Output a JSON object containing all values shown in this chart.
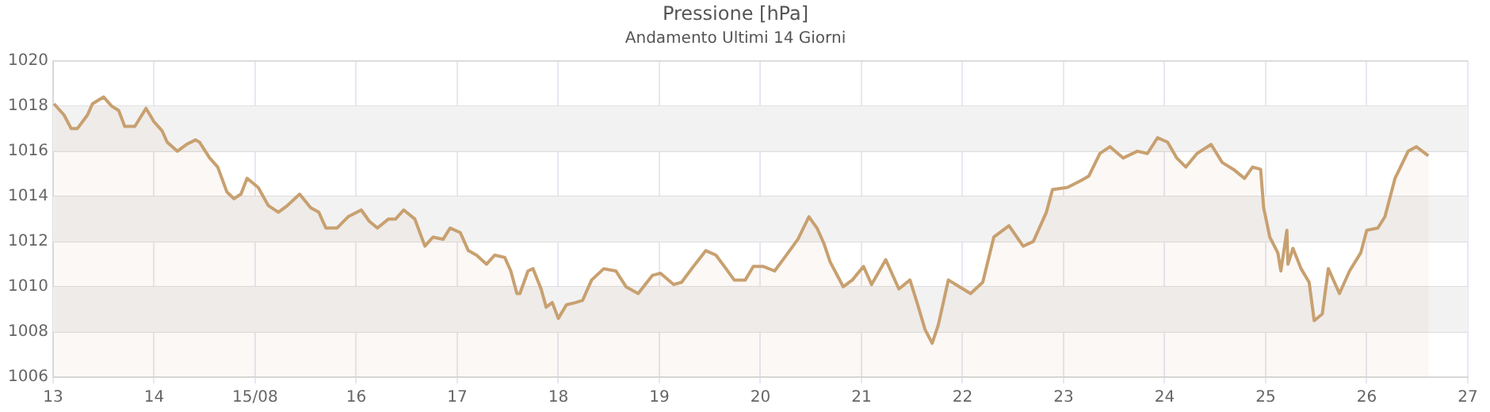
{
  "chart_data": {
    "type": "area",
    "title": "Pressione [hPa]",
    "subtitle": "Andamento Ultimi 14 Giorni",
    "xlim": [
      "--08-13",
      "--08-27"
    ],
    "xticks": [
      {
        "value": "--08-13",
        "label": "13"
      },
      {
        "value": "--08-14",
        "label": "14"
      },
      {
        "value": "--08-15",
        "label": "15/08"
      },
      {
        "value": "--08-16",
        "label": "16"
      },
      {
        "value": "--08-17",
        "label": "17"
      },
      {
        "value": "--08-18",
        "label": "18"
      },
      {
        "value": "--08-19",
        "label": "19"
      },
      {
        "value": "--08-20",
        "label": "20"
      },
      {
        "value": "--08-21",
        "label": "21"
      },
      {
        "value": "--08-22",
        "label": "22"
      },
      {
        "value": "--08-23",
        "label": "23"
      },
      {
        "value": "--08-24",
        "label": "24"
      },
      {
        "value": "--08-25",
        "label": "25"
      },
      {
        "value": "--08-26",
        "label": "26"
      },
      {
        "value": "--08-27",
        "label": "27"
      }
    ],
    "ylim": [
      1006,
      1020
    ],
    "yticks": [
      1006,
      1008,
      1010,
      1012,
      1014,
      1016,
      1018,
      1020
    ],
    "grid": true,
    "legend": false,
    "marker": "none",
    "line_style": "solid",
    "bands": [
      {
        "axis": "y",
        "from": 1008,
        "to": 1010,
        "color": "#f2f2f2"
      },
      {
        "axis": "y",
        "from": 1012,
        "to": 1014,
        "color": "#f2f2f2"
      },
      {
        "axis": "y",
        "from": 1016,
        "to": 1018,
        "color": "#f2f2f2"
      }
    ],
    "series": [
      {
        "color": "#c8a070",
        "x": [
          "--08-13T00:14",
          "--08-13T02:38",
          "--08-13T04:19",
          "--08-13T05:46",
          "--08-13T08:10",
          "--08-13T09:22",
          "--08-13T12:00",
          "--08-13T13:55",
          "--08-13T15:36",
          "--08-13T17:02",
          "--08-13T19:26",
          "--08-13T22:05",
          "--08-14T00:00",
          "--08-14T01:55",
          "--08-14T03:07",
          "--08-14T05:31",
          "--08-14T07:41",
          "--08-14T09:50",
          "--08-14T10:48",
          "--08-14T13:12",
          "--08-14T15:07",
          "--08-14T17:17",
          "--08-14T18:58",
          "--08-14T20:38",
          "--08-14T22:05",
          "--08-15T00:43",
          "--08-15T03:07",
          "--08-15T05:31",
          "--08-15T07:41",
          "--08-15T10:34",
          "--08-15T13:12",
          "--08-15T15:07",
          "--08-15T16:48",
          "--08-15T19:26",
          "--08-15T22:05",
          "--08-16T01:12",
          "--08-16T03:07",
          "--08-16T05:02",
          "--08-16T07:41",
          "--08-16T09:22",
          "--08-16T11:17",
          "--08-16T13:55",
          "--08-16T16:19",
          "--08-16T18:14",
          "--08-16T20:38",
          "--08-16T22:19",
          "--08-17T00:43",
          "--08-17T02:38",
          "--08-17T04:34",
          "--08-17T06:58",
          "--08-17T08:53",
          "--08-17T11:17",
          "--08-17T12:43",
          "--08-17T14:10",
          "--08-17T14:53",
          "--08-17T16:48",
          "--08-17T18:00",
          "--08-17T19:55",
          "--08-17T21:07",
          "--08-17T22:34",
          "--08-18T00:00",
          "--08-18T01:55",
          "--08-18T04:05",
          "--08-18T05:46",
          "--08-18T07:55",
          "--08-18T10:48",
          "--08-18T13:41",
          "--08-18T16:05",
          "--08-18T18:58",
          "--08-18T22:19",
          "--08-19T00:14",
          "--08-19T03:22",
          "--08-19T05:17",
          "--08-19T07:41",
          "--08-19T11:02",
          "--08-19T13:26",
          "--08-19T15:50",
          "--08-19T17:46",
          "--08-19T20:24",
          "--08-19T22:19",
          "--08-20T00:43",
          "--08-20T03:22",
          "--08-20T05:46",
          "--08-20T08:53",
          "--08-20T11:31",
          "--08-20T13:26",
          "--08-20T15:07",
          "--08-20T16:34",
          "--08-20T19:41",
          "--08-20T21:50",
          "--08-21T00:29",
          "--08-21T02:24",
          "--08-21T05:46",
          "--08-21T08:53",
          "--08-21T11:31",
          "--08-21T13:12",
          "--08-21T15:07",
          "--08-21T16:48",
          "--08-21T18:14",
          "--08-21T20:38",
          "--08-21T23:17",
          "--08-22T01:55",
          "--08-22T04:48",
          "--08-22T07:26",
          "--08-22T11:02",
          "--08-22T14:24",
          "--08-22T16:48",
          "--08-22T18:00",
          "--08-22T19:55",
          "--08-22T21:22",
          "--08-23T00:58",
          "--08-23T04:05",
          "--08-23T06:00",
          "--08-23T08:38",
          "--08-23T11:02",
          "--08-23T14:10",
          "--08-23T17:31",
          "--08-23T19:55",
          "--08-23T22:19",
          "--08-24T00:43",
          "--08-24T02:53",
          "--08-24T05:02",
          "--08-24T07:41",
          "--08-24T11:02",
          "--08-24T13:41",
          "--08-24T16:19",
          "--08-24T18:58",
          "--08-24T20:53",
          "--08-24T22:48",
          "--08-24T23:31",
          "--08-25T00:58",
          "--08-25T02:53",
          "--08-25T03:36",
          "--08-25T05:02",
          "--08-25T05:17",
          "--08-25T06:29",
          "--08-25T08:24",
          "--08-25T10:19",
          "--08-25T11:31",
          "--08-25T13:26",
          "--08-25T14:53",
          "--08-25T17:31",
          "--08-25T19:55",
          "--08-25T22:34",
          "--08-26T00:00",
          "--08-26T02:38",
          "--08-26T04:19",
          "--08-26T06:43",
          "--08-26T09:50",
          "--08-26T11:46",
          "--08-26T14:38"
        ],
        "values": [
          1018.1,
          1017.6,
          1017.0,
          1017.0,
          1017.6,
          1018.1,
          1018.4,
          1018.0,
          1017.8,
          1017.1,
          1017.1,
          1017.9,
          1017.3,
          1016.9,
          1016.4,
          1016.0,
          1016.3,
          1016.5,
          1016.4,
          1015.7,
          1015.3,
          1014.2,
          1013.9,
          1014.1,
          1014.8,
          1014.4,
          1013.6,
          1013.3,
          1013.6,
          1014.1,
          1013.5,
          1013.3,
          1012.6,
          1012.6,
          1013.1,
          1013.4,
          1012.9,
          1012.6,
          1013.0,
          1013.0,
          1013.4,
          1013.0,
          1011.8,
          1012.2,
          1012.1,
          1012.6,
          1012.4,
          1011.6,
          1011.4,
          1011.0,
          1011.4,
          1011.3,
          1010.7,
          1009.7,
          1009.7,
          1010.7,
          1010.8,
          1009.9,
          1009.1,
          1009.3,
          1008.6,
          1009.2,
          1009.3,
          1009.4,
          1010.3,
          1010.8,
          1010.7,
          1010.0,
          1009.7,
          1010.5,
          1010.6,
          1010.1,
          1010.2,
          1010.8,
          1011.6,
          1011.4,
          1010.8,
          1010.3,
          1010.3,
          1010.9,
          1010.9,
          1010.7,
          1011.3,
          1012.1,
          1013.1,
          1012.6,
          1011.9,
          1011.1,
          1010.0,
          1010.3,
          1010.9,
          1010.1,
          1011.2,
          1009.9,
          1010.3,
          1009.3,
          1008.1,
          1007.5,
          1008.3,
          1010.3,
          1010.0,
          1009.7,
          1010.2,
          1012.2,
          1012.7,
          1011.8,
          1012.0,
          1012.5,
          1013.3,
          1014.3,
          1014.4,
          1014.7,
          1014.9,
          1015.9,
          1016.2,
          1015.7,
          1016.0,
          1015.9,
          1016.6,
          1016.4,
          1015.7,
          1015.3,
          1015.9,
          1016.3,
          1015.5,
          1015.2,
          1014.8,
          1015.3,
          1015.2,
          1013.5,
          1012.2,
          1011.5,
          1010.7,
          1012.5,
          1011.0,
          1011.7,
          1010.8,
          1010.2,
          1008.5,
          1008.8,
          1010.8,
          1009.7,
          1010.7,
          1011.5,
          1012.5,
          1012.6,
          1013.1,
          1014.8,
          1016.0,
          1016.2,
          1015.8
        ]
      }
    ]
  }
}
